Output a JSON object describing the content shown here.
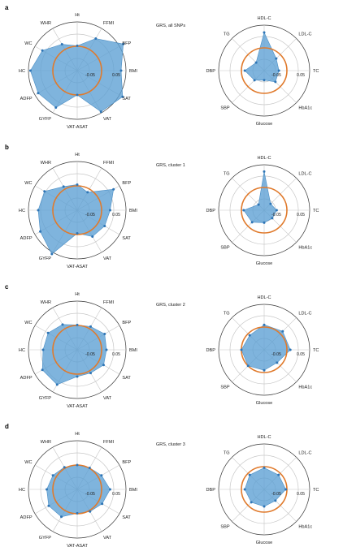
{
  "chart_data": [
    {
      "panel": "a",
      "title": "GRS, all SNPs",
      "type": "radar",
      "adiposity": {
        "axes": [
          "Ht",
          "FFMI",
          "BFP",
          "BMI",
          "SAT",
          "VAT",
          "VAT-ASAT",
          "GYFP",
          "ADFP",
          "HC",
          "WC",
          "WHR"
        ],
        "values": [
          0.002,
          0.052,
          0.118,
          0.08,
          0.115,
          0.095,
          0.0,
          0.075,
          0.085,
          0.092,
          0.065,
          0.025
        ],
        "rlim": [
          -0.1,
          0.1
        ],
        "ticks": [
          "-0.05",
          "0.05"
        ]
      },
      "cardiometabolic": {
        "axes": [
          "HDL-C",
          "LDL-C",
          "TC",
          "HbA1c",
          "Glucose",
          "SBP",
          "DBP",
          "TG"
        ],
        "values": [
          0.068,
          -0.025,
          -0.035,
          -0.03,
          -0.058,
          -0.04,
          -0.015,
          -0.05
        ],
        "rlim": [
          -0.1,
          0.1
        ],
        "ticks": [
          "-0.05",
          "0.05"
        ]
      }
    },
    {
      "panel": "b",
      "title": "GRS, cluster 1",
      "type": "radar",
      "adiposity": {
        "axes": [
          "Ht",
          "FFMI",
          "BFP",
          "BMI",
          "SAT",
          "VAT",
          "VAT-ASAT",
          "GYFP",
          "ADFP",
          "HC",
          "WC",
          "WHR"
        ],
        "values": [
          0.005,
          -0.015,
          0.072,
          0.035,
          0.03,
          0.025,
          -0.005,
          0.108,
          0.075,
          0.06,
          0.055,
          0.012
        ],
        "rlim": [
          -0.1,
          0.1
        ],
        "ticks": [
          "-0.05",
          "0.05"
        ]
      },
      "cardiometabolic": {
        "axes": [
          "HDL-C",
          "LDL-C",
          "TC",
          "HbA1c",
          "Glucose",
          "SBP",
          "DBP",
          "TG"
        ],
        "values": [
          0.07,
          -0.06,
          -0.045,
          -0.05,
          -0.045,
          -0.025,
          -0.01,
          -0.065
        ],
        "rlim": [
          -0.1,
          0.1
        ],
        "ticks": [
          "-0.05",
          "0.05"
        ]
      }
    },
    {
      "panel": "c",
      "title": "GRS, cluster 2",
      "type": "radar",
      "adiposity": {
        "axes": [
          "Ht",
          "FFMI",
          "BFP",
          "BMI",
          "SAT",
          "VAT",
          "VAT-ASAT",
          "GYFP",
          "ADFP",
          "HC",
          "WC",
          "WHR"
        ],
        "values": [
          0.002,
          0.01,
          0.03,
          0.02,
          0.025,
          0.01,
          0.01,
          0.065,
          0.065,
          0.04,
          0.038,
          0.02
        ],
        "rlim": [
          -0.1,
          0.1
        ],
        "ticks": [
          "-0.05",
          "0.05"
        ]
      },
      "cardiometabolic": {
        "axes": [
          "HDL-C",
          "LDL-C",
          "TC",
          "HbA1c",
          "Glucose",
          "SBP",
          "DBP",
          "TG"
        ],
        "values": [
          0.01,
          0.015,
          0.015,
          -0.02,
          -0.01,
          0.0,
          0.0,
          -0.01
        ],
        "rlim": [
          -0.1,
          0.1
        ],
        "ticks": [
          "-0.05",
          "0.05"
        ]
      }
    },
    {
      "panel": "d",
      "title": "GRS, cluster 3",
      "type": "radar",
      "adiposity": {
        "axes": [
          "Ht",
          "FFMI",
          "BFP",
          "BMI",
          "SAT",
          "VAT",
          "VAT-ASAT",
          "GYFP",
          "ADFP",
          "HC",
          "WC",
          "WHR"
        ],
        "values": [
          0.0,
          0.002,
          0.015,
          0.035,
          0.018,
          0.005,
          -0.002,
          0.03,
          0.035,
          0.025,
          0.015,
          0.005
        ],
        "rlim": [
          -0.1,
          0.1
        ],
        "ticks": [
          "-0.05",
          "0.05"
        ]
      },
      "cardiometabolic": {
        "axes": [
          "HDL-C",
          "LDL-C",
          "TC",
          "HbA1c",
          "Glucose",
          "SBP",
          "DBP",
          "TG"
        ],
        "values": [
          -0.005,
          -0.01,
          -0.005,
          -0.03,
          -0.025,
          -0.02,
          -0.015,
          -0.01
        ],
        "rlim": [
          -0.1,
          0.1
        ],
        "ticks": [
          "-0.05",
          "0.05"
        ]
      }
    }
  ]
}
